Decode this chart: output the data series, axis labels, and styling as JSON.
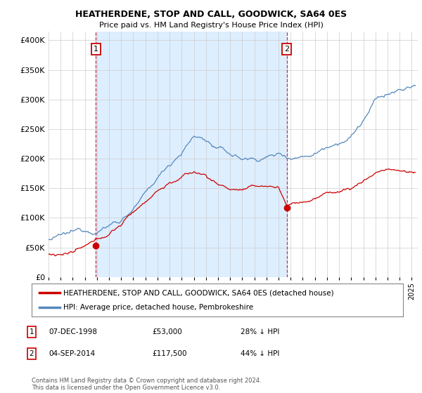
{
  "title": "HEATHERDENE, STOP AND CALL, GOODWICK, SA64 0ES",
  "subtitle": "Price paid vs. HM Land Registry's House Price Index (HPI)",
  "ylabel_ticks": [
    "£0",
    "£50K",
    "£100K",
    "£150K",
    "£200K",
    "£250K",
    "£300K",
    "£350K",
    "£400K"
  ],
  "ylim": [
    0,
    415000
  ],
  "xlim_start": 1995.0,
  "xlim_end": 2025.5,
  "sale1_date": 1998.92,
  "sale1_price": 53000,
  "sale2_date": 2014.67,
  "sale2_price": 117500,
  "red_color": "#cc0000",
  "blue_color": "#5588bb",
  "fill_color": "#ddeeff",
  "legend_label1": "HEATHERDENE, STOP AND CALL, GOODWICK, SA64 0ES (detached house)",
  "legend_label2": "HPI: Average price, detached house, Pembrokeshire",
  "footer": "Contains HM Land Registry data © Crown copyright and database right 2024.\nThis data is licensed under the Open Government Licence v3.0.",
  "background_color": "#ffffff",
  "grid_color": "#cccccc"
}
